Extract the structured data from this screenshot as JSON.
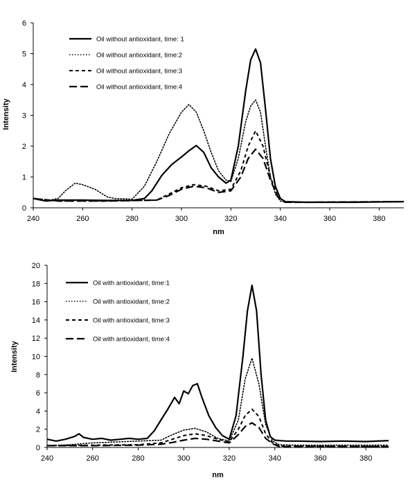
{
  "chart_data": [
    {
      "type": "line",
      "xlabel": "nm",
      "ylabel": "Intensity",
      "xlim": [
        240,
        390
      ],
      "ylim": [
        0,
        6
      ],
      "xticks": [
        240,
        260,
        280,
        300,
        320,
        340,
        360,
        380
      ],
      "yticks": [
        0,
        1,
        2,
        3,
        4,
        5,
        6
      ],
      "grid": false,
      "legend": "top-left",
      "series": [
        {
          "name": "Oil without antioxidant, time: 1",
          "style": "solid",
          "x": [
            240,
            245,
            250,
            260,
            270,
            280,
            285,
            288,
            292,
            296,
            300,
            303,
            306,
            309,
            312,
            315,
            318,
            320,
            323,
            326,
            328,
            330,
            332,
            334,
            336,
            338,
            340,
            342,
            350,
            360,
            370,
            380,
            390
          ],
          "y": [
            0.3,
            0.22,
            0.25,
            0.25,
            0.24,
            0.24,
            0.3,
            0.55,
            1.05,
            1.4,
            1.65,
            1.85,
            2.02,
            1.8,
            1.3,
            1.0,
            0.8,
            0.9,
            2.0,
            3.8,
            4.8,
            5.15,
            4.7,
            3.2,
            1.6,
            0.7,
            0.3,
            0.2,
            0.18,
            0.18,
            0.18,
            0.19,
            0.2
          ]
        },
        {
          "name": "Oil without antioxidant, time:2",
          "style": "dotted",
          "x": [
            240,
            245,
            250,
            253,
            257,
            260,
            265,
            270,
            273,
            280,
            285,
            290,
            295,
            300,
            303,
            306,
            309,
            312,
            315,
            318,
            320,
            323,
            326,
            328,
            330,
            332,
            334,
            336,
            338,
            340,
            342,
            350,
            390
          ],
          "y": [
            0.3,
            0.22,
            0.3,
            0.55,
            0.8,
            0.75,
            0.6,
            0.35,
            0.3,
            0.28,
            0.7,
            1.5,
            2.4,
            3.1,
            3.35,
            3.1,
            2.5,
            1.8,
            1.2,
            0.9,
            0.85,
            1.6,
            2.8,
            3.3,
            3.5,
            3.1,
            2.0,
            1.0,
            0.45,
            0.22,
            0.18,
            0.18,
            0.2
          ]
        },
        {
          "name": "Oil without antioxidant, time:3",
          "style": "short-dash",
          "x": [
            240,
            250,
            270,
            290,
            295,
            300,
            305,
            310,
            315,
            320,
            324,
            327,
            330,
            333,
            336,
            339,
            342,
            350,
            390
          ],
          "y": [
            0.3,
            0.22,
            0.22,
            0.25,
            0.45,
            0.65,
            0.75,
            0.7,
            0.55,
            0.6,
            1.2,
            2.0,
            2.5,
            2.0,
            1.0,
            0.35,
            0.18,
            0.18,
            0.2
          ]
        },
        {
          "name": "Oil without antioxidant, time:4",
          "style": "long-dash",
          "x": [
            240,
            250,
            270,
            290,
            295,
            300,
            305,
            310,
            315,
            320,
            324,
            327,
            330,
            333,
            336,
            339,
            342,
            350,
            390
          ],
          "y": [
            0.3,
            0.22,
            0.22,
            0.25,
            0.4,
            0.6,
            0.7,
            0.65,
            0.5,
            0.55,
            1.0,
            1.6,
            1.9,
            1.6,
            0.9,
            0.35,
            0.18,
            0.18,
            0.2
          ]
        }
      ]
    },
    {
      "type": "line",
      "xlabel": "nm",
      "ylabel": "Intensity",
      "xlim": [
        240,
        390
      ],
      "ylim": [
        0,
        20
      ],
      "xticks": [
        240,
        260,
        280,
        300,
        320,
        340,
        360,
        380
      ],
      "yticks": [
        0,
        2,
        4,
        6,
        8,
        10,
        12,
        14,
        16,
        18,
        20
      ],
      "grid": false,
      "legend": "top-left",
      "series": [
        {
          "name": "Oil with antioxidant, time:1",
          "style": "solid",
          "x": [
            240,
            244,
            248,
            252,
            254,
            256,
            260,
            264,
            268,
            272,
            276,
            280,
            284,
            287,
            290,
            293,
            296,
            298,
            300,
            302,
            304,
            306,
            308,
            311,
            314,
            317,
            320,
            323,
            326,
            328,
            330,
            332,
            334,
            336,
            338,
            340,
            345,
            350,
            360,
            370,
            380,
            390
          ],
          "y": [
            0.9,
            0.7,
            0.9,
            1.2,
            1.5,
            1.1,
            0.9,
            1.0,
            0.8,
            0.9,
            1.0,
            0.9,
            1.0,
            1.8,
            3.0,
            4.2,
            5.5,
            4.8,
            6.2,
            5.9,
            6.8,
            7.0,
            5.5,
            3.5,
            2.2,
            1.3,
            0.9,
            3.5,
            10.0,
            15.0,
            17.8,
            15.0,
            8.0,
            3.0,
            1.2,
            0.8,
            0.7,
            0.7,
            0.65,
            0.7,
            0.65,
            0.75
          ]
        },
        {
          "name": "Oil with antioxidant, time:2",
          "style": "dotted",
          "x": [
            240,
            250,
            260,
            270,
            280,
            290,
            295,
            300,
            305,
            310,
            315,
            320,
            324,
            327,
            330,
            333,
            336,
            339,
            342,
            350,
            390
          ],
          "y": [
            0.2,
            0.3,
            0.5,
            0.6,
            0.7,
            0.8,
            1.4,
            1.9,
            2.1,
            1.7,
            1.0,
            0.7,
            3.0,
            7.5,
            9.8,
            7.0,
            2.5,
            0.7,
            0.3,
            0.25,
            0.25
          ]
        },
        {
          "name": "Oil with antioxidant, time:3",
          "style": "short-dash",
          "x": [
            240,
            260,
            280,
            290,
            295,
            300,
            305,
            310,
            315,
            320,
            324,
            327,
            330,
            333,
            336,
            339,
            342,
            390
          ],
          "y": [
            0.2,
            0.25,
            0.3,
            0.5,
            0.9,
            1.3,
            1.5,
            1.3,
            0.9,
            0.6,
            2.0,
            3.5,
            4.2,
            3.4,
            1.5,
            0.5,
            0.15,
            0.1
          ]
        },
        {
          "name": "Oil with antioxidant, time:4",
          "style": "long-dash",
          "x": [
            240,
            260,
            280,
            290,
            295,
            300,
            305,
            310,
            315,
            320,
            324,
            327,
            330,
            333,
            336,
            339,
            342,
            390
          ],
          "y": [
            0.2,
            0.2,
            0.25,
            0.35,
            0.55,
            0.8,
            1.0,
            0.9,
            0.7,
            0.5,
            1.4,
            2.3,
            2.7,
            2.2,
            1.0,
            0.4,
            0.1,
            0.1
          ]
        }
      ]
    }
  ]
}
